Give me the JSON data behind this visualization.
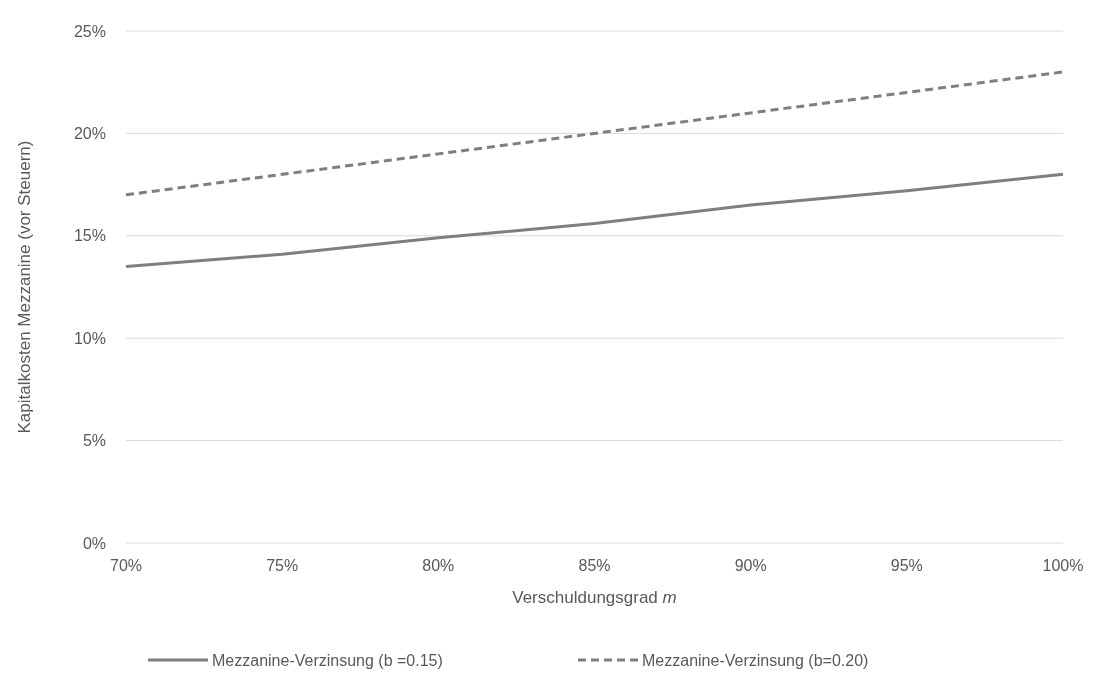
{
  "chart_data": {
    "type": "line",
    "xlabel": "Verschuldungsgrad m",
    "ylabel": "Kapitalkosten Mezzanine (vor Steuern)",
    "x": [
      70,
      75,
      80,
      85,
      90,
      95,
      100
    ],
    "series": [
      {
        "name": "Mezzanine-Verzinsung (b =0.15)",
        "color": "#7f7f7f",
        "line_style": "solid",
        "values": [
          13.5,
          14.1,
          14.9,
          15.6,
          16.5,
          17.2,
          18.0
        ]
      },
      {
        "name": "Mezzanine-Verzinsung (b=0.20)",
        "color": "#7f7f7f",
        "line_style": "dashed",
        "values": [
          17.0,
          18.0,
          19.0,
          20.0,
          21.0,
          22.0,
          23.0
        ]
      }
    ],
    "xlim": [
      70,
      100
    ],
    "ylim": [
      0,
      25
    ],
    "xticks": [
      {
        "value": 70,
        "label": "70%"
      },
      {
        "value": 75,
        "label": "75%"
      },
      {
        "value": 80,
        "label": "80%"
      },
      {
        "value": 85,
        "label": "85%"
      },
      {
        "value": 90,
        "label": "90%"
      },
      {
        "value": 95,
        "label": "95%"
      },
      {
        "value": 100,
        "label": "100%"
      }
    ],
    "yticks": [
      {
        "value": 0,
        "label": "0%"
      },
      {
        "value": 5,
        "label": "5%"
      },
      {
        "value": 10,
        "label": "10%"
      },
      {
        "value": 15,
        "label": "15%"
      },
      {
        "value": 20,
        "label": "20%"
      },
      {
        "value": 25,
        "label": "25%"
      }
    ],
    "grid": "y",
    "legend": "bottom"
  }
}
